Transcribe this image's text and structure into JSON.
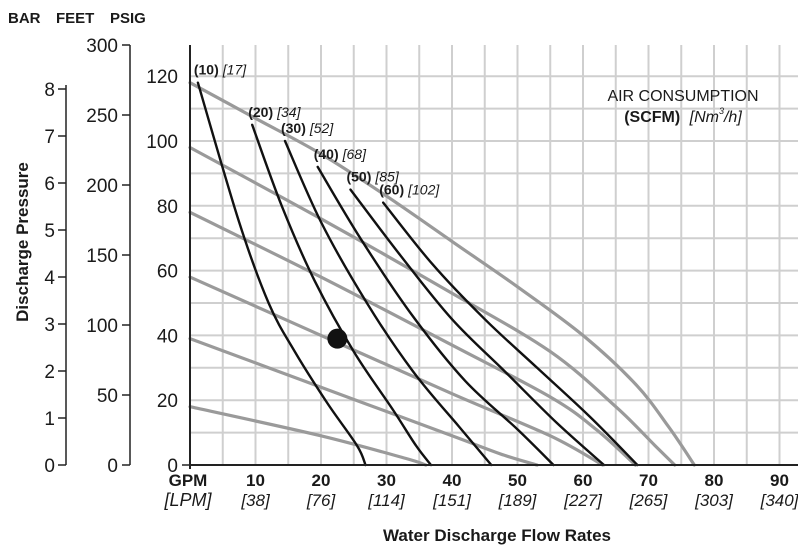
{
  "chart_data": {
    "type": "line",
    "title": "",
    "xlabel": "Water Discharge Flow Rates",
    "ylabel": "Discharge Pressure",
    "y_unit_headers": [
      "BAR",
      "FEET",
      "PSIG"
    ],
    "x_unit_primary": "GPM",
    "x_unit_secondary": "[LPM]",
    "x_ticks": [
      {
        "gpm": "10",
        "lpm": "[38]"
      },
      {
        "gpm": "20",
        "lpm": "[76]"
      },
      {
        "gpm": "30",
        "lpm": "[114]"
      },
      {
        "gpm": "40",
        "lpm": "[151]"
      },
      {
        "gpm": "50",
        "lpm": "[189]"
      },
      {
        "gpm": "60",
        "lpm": "[227]"
      },
      {
        "gpm": "70",
        "lpm": "[265]"
      },
      {
        "gpm": "80",
        "lpm": "[303]"
      },
      {
        "gpm": "90",
        "lpm": "[340]"
      }
    ],
    "xlim": [
      0,
      95
    ],
    "ylim_psig": [
      0,
      130
    ],
    "psig_ticks": [
      "20",
      "40",
      "60",
      "80",
      "100",
      "120"
    ],
    "feet_ticks": [
      "0",
      "50",
      "100",
      "150",
      "200",
      "250",
      "300"
    ],
    "bar_ticks": [
      "0",
      "1",
      "2",
      "3",
      "4",
      "5",
      "6",
      "7",
      "8"
    ],
    "legend": {
      "line1": "AIR CONSUMPTION",
      "unit_bold": "(SCFM)",
      "unit_metric": "[Nm",
      "unit_metric_sup": "3",
      "unit_metric_end": "/h]"
    },
    "air_curves": [
      {
        "label_bold": "(10)",
        "label_metric": "[17]",
        "points": [
          [
            1.2,
            118
          ],
          [
            7.5,
            75
          ],
          [
            12,
            50
          ],
          [
            16,
            35
          ],
          [
            21,
            19
          ],
          [
            25.5,
            6
          ],
          [
            26.8,
            0
          ]
        ]
      },
      {
        "label_bold": "(20)",
        "label_metric": "[34]",
        "points": [
          [
            9.5,
            105
          ],
          [
            14,
            80
          ],
          [
            19,
            57
          ],
          [
            25,
            35
          ],
          [
            31,
            17
          ],
          [
            34.5,
            6
          ],
          [
            36.8,
            0
          ]
        ]
      },
      {
        "label_bold": "(30)",
        "label_metric": "[52]",
        "points": [
          [
            14.5,
            100
          ],
          [
            20,
            75
          ],
          [
            27,
            50
          ],
          [
            34,
            29
          ],
          [
            41,
            12
          ],
          [
            46,
            0
          ]
        ]
      },
      {
        "label_bold": "(40)",
        "label_metric": "[68]",
        "points": [
          [
            19.5,
            92
          ],
          [
            26,
            70
          ],
          [
            34,
            46
          ],
          [
            42,
            26
          ],
          [
            50,
            11
          ],
          [
            55.5,
            0
          ]
        ]
      },
      {
        "label_bold": "(50)",
        "label_metric": "[85]",
        "points": [
          [
            24.5,
            85
          ],
          [
            32,
            65
          ],
          [
            40,
            45
          ],
          [
            48,
            29
          ],
          [
            56,
            13
          ],
          [
            63.2,
            0
          ]
        ]
      },
      {
        "label_bold": "(60)",
        "label_metric": "[102]",
        "points": [
          [
            29.5,
            81
          ],
          [
            37,
            62
          ],
          [
            45,
            45
          ],
          [
            53,
            30
          ],
          [
            61,
            15
          ],
          [
            68.3,
            0
          ]
        ]
      }
    ],
    "head_curves": [
      {
        "points": [
          [
            0,
            118
          ],
          [
            10,
            107
          ],
          [
            20,
            96
          ],
          [
            30,
            83
          ],
          [
            40,
            69
          ],
          [
            50,
            55
          ],
          [
            60,
            40
          ],
          [
            68,
            25
          ],
          [
            73,
            12
          ],
          [
            77,
            0
          ]
        ]
      },
      {
        "points": [
          [
            0,
            98
          ],
          [
            20,
            76
          ],
          [
            40,
            53
          ],
          [
            55,
            35
          ],
          [
            65,
            18
          ],
          [
            71,
            6
          ],
          [
            74,
            0
          ]
        ]
      },
      {
        "points": [
          [
            0,
            78
          ],
          [
            20,
            58
          ],
          [
            40,
            37
          ],
          [
            55,
            21
          ],
          [
            62,
            11
          ],
          [
            68,
            0
          ]
        ]
      },
      {
        "points": [
          [
            0,
            58
          ],
          [
            20,
            40
          ],
          [
            40,
            22
          ],
          [
            55,
            9
          ],
          [
            63,
            0
          ]
        ]
      },
      {
        "points": [
          [
            0,
            39
          ],
          [
            20,
            24
          ],
          [
            40,
            9
          ],
          [
            48,
            3
          ],
          [
            53,
            0
          ]
        ]
      },
      {
        "points": [
          [
            0,
            18
          ],
          [
            20,
            9
          ],
          [
            33,
            2
          ],
          [
            36,
            0
          ]
        ]
      }
    ],
    "operating_point": {
      "x": 22.5,
      "y": 39
    }
  }
}
